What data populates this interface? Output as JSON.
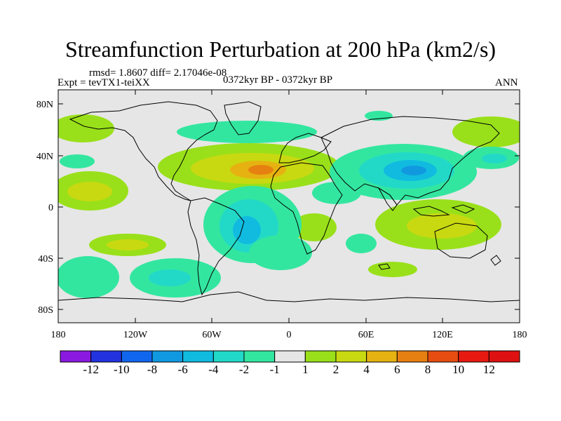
{
  "title": "Streamfunction Perturbation at 200 hPa (km2/s)",
  "stats": "rmsd= 1.8607  diff= 2.17046e-08",
  "experiment": "Expt = tevTX1-teiXX",
  "period": "0372kyr BP - 0372kyr BP",
  "season": "ANN",
  "axes": {
    "lat_ticks": [
      "80N",
      "40N",
      "0",
      "40S",
      "80S"
    ],
    "lon_ticks": [
      "180",
      "120W",
      "60W",
      "0",
      "60E",
      "120E",
      "180"
    ]
  },
  "colorbar": {
    "labels": [
      "-12",
      "-10",
      "-8",
      "-6",
      "-4",
      "-2",
      "-1",
      "1",
      "2",
      "4",
      "6",
      "8",
      "10",
      "12"
    ],
    "colors": [
      "#8a1adf",
      "#2233dd",
      "#1166ee",
      "#1199e0",
      "#11bbe0",
      "#22d9c8",
      "#33e6a0",
      "#e6e6e6",
      "#99e01a",
      "#c8d911",
      "#e6b211",
      "#e68011",
      "#e64d11",
      "#e61a11",
      "#dd1111"
    ]
  },
  "colors": {
    "background": "#e6e6e6",
    "coast": "#000000"
  }
}
